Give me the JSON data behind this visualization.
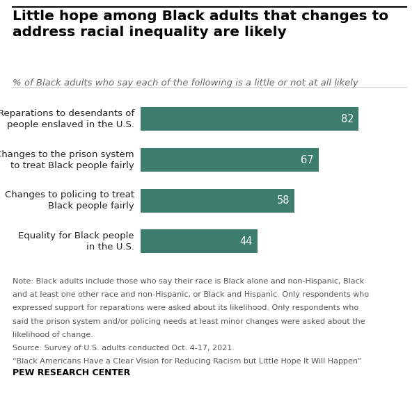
{
  "title_line1": "Little hope among Black adults that changes to",
  "title_line2": "address racial inequality are likely",
  "subtitle": "% of Black adults who say each of the following is a little or not at all likely",
  "categories": [
    "Reparations to desendants of\npeople enslaved in the U.S.",
    "Changes to the prison system\nto treat Black people fairly",
    "Changes to policing to treat\nBlack people fairly",
    "Equality for Black people\nin the U.S."
  ],
  "values": [
    82,
    67,
    58,
    44
  ],
  "bar_color": "#3c7d6e",
  "value_label_color": "#ffffff",
  "background_color": "#ffffff",
  "note_lines": [
    "Note: Black adults include those who say their race is Black alone and non-Hispanic, Black",
    "and at least one other race and non-Hispanic, or Black and Hispanic. Only respondents who",
    "expressed support for reparations were asked about its likelihood. Only respondents who",
    "said the prison system and/or policing needs at least minor changes were asked about the",
    "likelihood of change.",
    "Source: Survey of U.S. adults conducted Oct. 4-17, 2021.",
    "“Black Americans Have a Clear Vision for Reducing Racism but Little Hope It Will Happen”"
  ],
  "footer": "PEW RESEARCH CENTER",
  "title_fontsize": 14.5,
  "subtitle_fontsize": 9.5,
  "category_fontsize": 9.5,
  "value_fontsize": 10.5,
  "note_fontsize": 8,
  "footer_fontsize": 9,
  "xlim": [
    0,
    100
  ]
}
